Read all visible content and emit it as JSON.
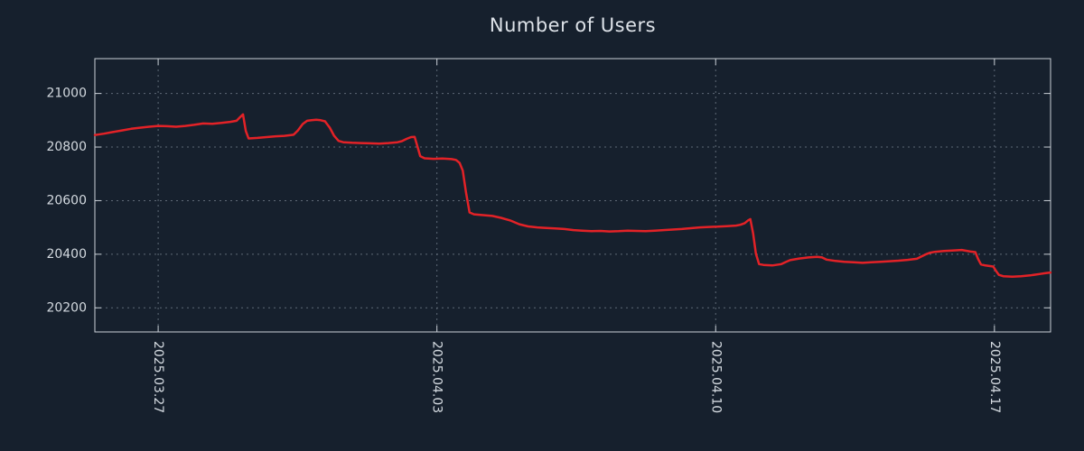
{
  "chart_data": {
    "type": "line",
    "title": "Number of Users",
    "xlabel": "",
    "ylabel": "",
    "legend": "none",
    "grid": "dotted",
    "x_unit": "days-from-left-edge",
    "x_range": [
      0,
      24
    ],
    "y_range": [
      20110,
      21130
    ],
    "y_ticks": [
      20200,
      20400,
      20600,
      20800,
      21000
    ],
    "x_ticks": [
      {
        "label": "2025.03.27",
        "t": 1.59
      },
      {
        "label": "2025.04.03",
        "t": 8.59
      },
      {
        "label": "2025.04.10",
        "t": 15.59
      },
      {
        "label": "2025.04.17",
        "t": 22.59
      }
    ],
    "series": [
      {
        "name": "Number of Users",
        "color": "#e32227",
        "points": [
          [
            0.0,
            20845
          ],
          [
            0.23,
            20850
          ],
          [
            0.45,
            20856
          ],
          [
            0.68,
            20862
          ],
          [
            0.91,
            20868
          ],
          [
            1.13,
            20872
          ],
          [
            1.36,
            20876
          ],
          [
            1.59,
            20879
          ],
          [
            1.81,
            20878
          ],
          [
            2.04,
            20876
          ],
          [
            2.27,
            20879
          ],
          [
            2.49,
            20883
          ],
          [
            2.72,
            20888
          ],
          [
            2.95,
            20887
          ],
          [
            3.18,
            20890
          ],
          [
            3.4,
            20894
          ],
          [
            3.56,
            20898
          ],
          [
            3.65,
            20912
          ],
          [
            3.72,
            20922
          ],
          [
            3.79,
            20860
          ],
          [
            3.86,
            20832
          ],
          [
            4.08,
            20834
          ],
          [
            4.31,
            20837
          ],
          [
            4.54,
            20840
          ],
          [
            4.76,
            20842
          ],
          [
            4.99,
            20846
          ],
          [
            5.1,
            20862
          ],
          [
            5.22,
            20886
          ],
          [
            5.33,
            20898
          ],
          [
            5.44,
            20900
          ],
          [
            5.56,
            20902
          ],
          [
            5.67,
            20900
          ],
          [
            5.78,
            20896
          ],
          [
            5.9,
            20872
          ],
          [
            6.01,
            20842
          ],
          [
            6.12,
            20823
          ],
          [
            6.24,
            20818
          ],
          [
            6.46,
            20816
          ],
          [
            6.69,
            20815
          ],
          [
            6.92,
            20814
          ],
          [
            7.14,
            20813
          ],
          [
            7.37,
            20815
          ],
          [
            7.6,
            20818
          ],
          [
            7.71,
            20822
          ],
          [
            7.82,
            20830
          ],
          [
            7.94,
            20837
          ],
          [
            8.03,
            20838
          ],
          [
            8.1,
            20802
          ],
          [
            8.17,
            20766
          ],
          [
            8.28,
            20758
          ],
          [
            8.51,
            20756
          ],
          [
            8.73,
            20757
          ],
          [
            8.96,
            20755
          ],
          [
            9.07,
            20752
          ],
          [
            9.16,
            20741
          ],
          [
            9.24,
            20712
          ],
          [
            9.32,
            20630
          ],
          [
            9.41,
            20556
          ],
          [
            9.52,
            20549
          ],
          [
            9.75,
            20546
          ],
          [
            9.98,
            20543
          ],
          [
            10.2,
            20536
          ],
          [
            10.43,
            20526
          ],
          [
            10.66,
            20512
          ],
          [
            10.88,
            20504
          ],
          [
            11.11,
            20500
          ],
          [
            11.34,
            20498
          ],
          [
            11.56,
            20496
          ],
          [
            11.79,
            20494
          ],
          [
            12.02,
            20490
          ],
          [
            12.24,
            20488
          ],
          [
            12.47,
            20486
          ],
          [
            12.7,
            20487
          ],
          [
            12.92,
            20485
          ],
          [
            13.15,
            20486
          ],
          [
            13.38,
            20488
          ],
          [
            13.6,
            20487
          ],
          [
            13.83,
            20486
          ],
          [
            14.06,
            20488
          ],
          [
            14.28,
            20490
          ],
          [
            14.51,
            20492
          ],
          [
            14.74,
            20494
          ],
          [
            14.96,
            20497
          ],
          [
            15.19,
            20500
          ],
          [
            15.42,
            20502
          ],
          [
            15.64,
            20503
          ],
          [
            15.87,
            20505
          ],
          [
            16.1,
            20507
          ],
          [
            16.21,
            20510
          ],
          [
            16.32,
            20516
          ],
          [
            16.4,
            20526
          ],
          [
            16.46,
            20531
          ],
          [
            16.53,
            20478
          ],
          [
            16.6,
            20402
          ],
          [
            16.68,
            20363
          ],
          [
            16.79,
            20360
          ],
          [
            17.01,
            20358
          ],
          [
            17.24,
            20363
          ],
          [
            17.35,
            20371
          ],
          [
            17.46,
            20378
          ],
          [
            17.69,
            20384
          ],
          [
            17.92,
            20388
          ],
          [
            18.14,
            20390
          ],
          [
            18.26,
            20388
          ],
          [
            18.37,
            20380
          ],
          [
            18.6,
            20375
          ],
          [
            18.82,
            20372
          ],
          [
            19.05,
            20370
          ],
          [
            19.28,
            20368
          ],
          [
            19.5,
            20370
          ],
          [
            19.73,
            20372
          ],
          [
            19.96,
            20374
          ],
          [
            20.18,
            20376
          ],
          [
            20.41,
            20379
          ],
          [
            20.64,
            20383
          ],
          [
            20.75,
            20391
          ],
          [
            20.86,
            20399
          ],
          [
            20.98,
            20406
          ],
          [
            21.09,
            20409
          ],
          [
            21.32,
            20412
          ],
          [
            21.54,
            20414
          ],
          [
            21.77,
            20416
          ],
          [
            21.88,
            20413
          ],
          [
            21.99,
            20410
          ],
          [
            22.11,
            20408
          ],
          [
            22.18,
            20382
          ],
          [
            22.25,
            20362
          ],
          [
            22.36,
            20358
          ],
          [
            22.56,
            20354
          ],
          [
            22.63,
            20338
          ],
          [
            22.7,
            20323
          ],
          [
            22.81,
            20318
          ],
          [
            23.04,
            20316
          ],
          [
            23.26,
            20318
          ],
          [
            23.49,
            20321
          ],
          [
            23.72,
            20326
          ],
          [
            23.86,
            20329
          ],
          [
            24.0,
            20332
          ]
        ]
      }
    ],
    "colors": {
      "background": "#16202d",
      "plot_border": "#c9cfd6",
      "grid": "#5f6a77",
      "tick_text": "#d3d9df",
      "title_text": "#dde2e8",
      "line": "#e32227"
    }
  }
}
